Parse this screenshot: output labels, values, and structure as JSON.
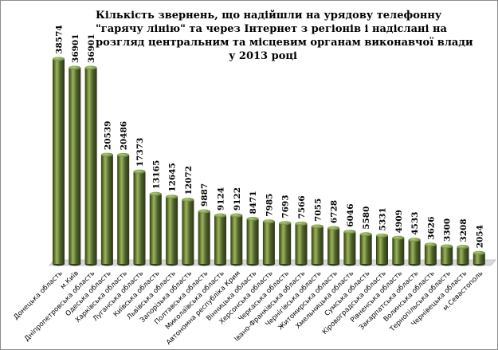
{
  "title_lines": [
    "Кількість звернень,  що надійшли на урядову телефонну",
    "\"гарячу лінію\" та через Інтернет з регіонів і надіслані на",
    "розгляд центральним та місцевим органам виконавчої влади",
    "у  2013 році"
  ],
  "colors": {
    "bar_main": "#4f6228",
    "bar_light": "#9bb55a",
    "bar_dark": "#2f3c16",
    "floor": "#d8d8d8",
    "floor_edge": "#bfbfbf",
    "text": "#000000"
  },
  "chart_data": {
    "type": "bar",
    "title": "Кількість звернень,  що надійшли на урядову телефонну \"гарячу лінію\" та через Інтернет з регіонів і надіслані на розгляд центральним та місцевим органам виконавчої влади у  2013 році",
    "categories": [
      "Донецька область",
      "м.Київ",
      "Дніпропетровська область",
      "Одеська область",
      "Харківська область",
      "Луганська область",
      "Київська область",
      "Львівська область",
      "Запорізька область",
      "Полтавська область",
      "Миколаївська область",
      "Автономна республіка Крим",
      "Вінницька область",
      "Херсонська область",
      "Черкаська область",
      "Івано-Франківська область",
      "Чернігівська область",
      "Житомирська область",
      "Хмельницька область",
      "Сумська область",
      "Кіровоградська область",
      "Рівненська область",
      "Закарпатська область",
      "Волинська область",
      "Тернопільська область",
      "Чернівецька область",
      "м.Севастополь"
    ],
    "values": [
      38574,
      36901,
      36901,
      20539,
      20486,
      17373,
      13165,
      12645,
      12072,
      9887,
      9124,
      9122,
      8471,
      7985,
      7693,
      7566,
      7055,
      6728,
      6046,
      5580,
      5331,
      4909,
      4533,
      3626,
      3300,
      3208,
      2054
    ],
    "ylim": [
      0,
      42000
    ],
    "grid": false,
    "legend": "none"
  }
}
